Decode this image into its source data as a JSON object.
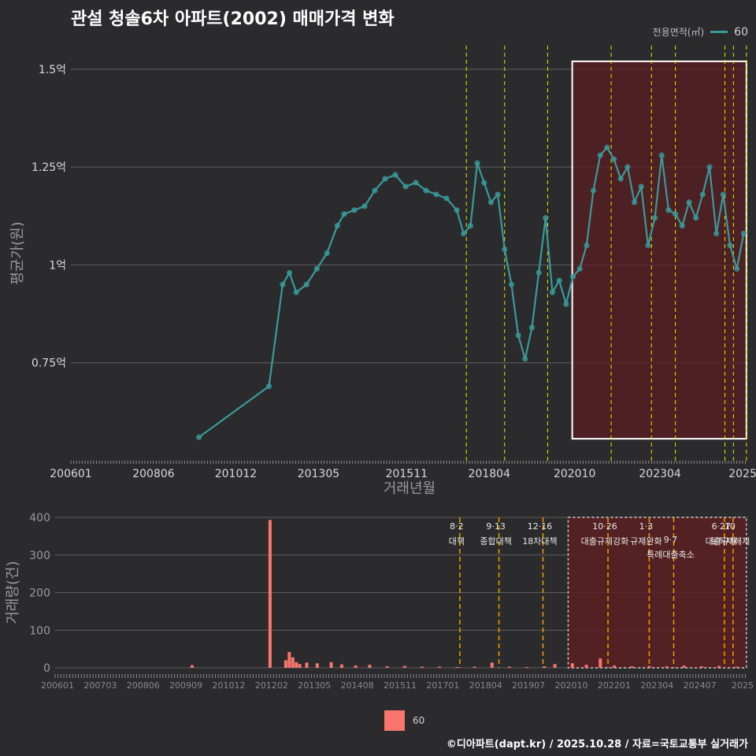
{
  "title": "관설 청솔6차 아파트(2002) 매매가격 변화",
  "legend": {
    "title": "전용면적(㎡)",
    "label": "60"
  },
  "colors": {
    "line": "#3a9a9a",
    "bar": "#f8766d",
    "highlight": "#5a1e22",
    "vline": "#e6e600",
    "vline2": "#f0a000"
  },
  "main_chart": {
    "type": "line",
    "ylabel": "평균가(원)",
    "xlabel": "거래년월",
    "yticks": [
      {
        "value": 1.5,
        "label": "1.5억"
      },
      {
        "value": 1.25,
        "label": "1.25억"
      },
      {
        "value": 1.0,
        "label": "1억"
      },
      {
        "value": 0.75,
        "label": "0.75억"
      }
    ],
    "ylim": [
      0.5,
      1.56
    ],
    "xlim": [
      2006.0,
      2025.83
    ],
    "xticks": [
      {
        "value": 2006.0,
        "label": "200601"
      },
      {
        "value": 2008.42,
        "label": "200806"
      },
      {
        "value": 2010.83,
        "label": "201012"
      },
      {
        "value": 2013.25,
        "label": "201305"
      },
      {
        "value": 2015.83,
        "label": "201511"
      },
      {
        "value": 2018.25,
        "label": "201804"
      },
      {
        "value": 2020.75,
        "label": "202010"
      },
      {
        "value": 2023.25,
        "label": "202304"
      },
      {
        "value": 2025.67,
        "label": "2025"
      }
    ],
    "series": [
      {
        "name": "60",
        "x": [
          2009.75,
          2011.8,
          2012.2,
          2012.4,
          2012.6,
          2012.9,
          2013.2,
          2013.5,
          2013.8,
          2014.0,
          2014.3,
          2014.6,
          2014.9,
          2015.2,
          2015.5,
          2015.8,
          2016.1,
          2016.4,
          2016.7,
          2017.0,
          2017.3,
          2017.5,
          2017.7,
          2017.9,
          2018.1,
          2018.3,
          2018.5,
          2018.7,
          2018.9,
          2019.1,
          2019.3,
          2019.5,
          2019.7,
          2019.9,
          2020.1,
          2020.3,
          2020.5,
          2020.7,
          2020.9,
          2021.1,
          2021.3,
          2021.5,
          2021.7,
          2021.9,
          2022.1,
          2022.3,
          2022.5,
          2022.7,
          2022.9,
          2023.1,
          2023.3,
          2023.5,
          2023.7,
          2023.9,
          2024.1,
          2024.3,
          2024.5,
          2024.7,
          2024.9,
          2025.1,
          2025.3,
          2025.5,
          2025.7
        ],
        "y": [
          0.56,
          0.69,
          0.95,
          0.98,
          0.93,
          0.95,
          0.99,
          1.03,
          1.1,
          1.13,
          1.14,
          1.15,
          1.19,
          1.22,
          1.23,
          1.2,
          1.21,
          1.19,
          1.18,
          1.17,
          1.14,
          1.08,
          1.1,
          1.26,
          1.21,
          1.16,
          1.18,
          1.04,
          0.95,
          0.82,
          0.76,
          0.84,
          0.98,
          1.12,
          0.93,
          0.96,
          0.9,
          0.97,
          0.99,
          1.05,
          1.19,
          1.28,
          1.3,
          1.27,
          1.22,
          1.25,
          1.16,
          1.2,
          1.05,
          1.12,
          1.28,
          1.14,
          1.13,
          1.1,
          1.16,
          1.12,
          1.18,
          1.25,
          1.08,
          1.18,
          1.05,
          0.99,
          1.08
        ]
      }
    ],
    "policy_lines_x": [
      2017.58,
      2018.7,
      2019.96,
      2021.82,
      2023.0,
      2023.7,
      2025.15,
      2025.4,
      2025.78
    ],
    "highlight_range": {
      "x": [
        2020.68,
        2025.78
      ],
      "y": [
        0.556,
        1.52
      ]
    }
  },
  "volume_chart": {
    "type": "bar",
    "ylabel": "거래량(건)",
    "yticks": [
      {
        "value": 400,
        "label": "400"
      },
      {
        "value": 300,
        "label": "300"
      },
      {
        "value": 200,
        "label": "200"
      },
      {
        "value": 100,
        "label": "100"
      },
      {
        "value": 0,
        "label": "0"
      }
    ],
    "ylim": [
      0,
      400
    ],
    "xlim": [
      2006.0,
      2025.83
    ],
    "xticks": [
      "200601",
      "200703",
      "200806",
      "200909",
      "201012",
      "201202",
      "201305",
      "201408",
      "201511",
      "201701",
      "201804",
      "201907",
      "202010",
      "202201",
      "202304",
      "202407",
      "2025"
    ],
    "bars": [
      {
        "x": 2009.92,
        "value": 7
      },
      {
        "x": 2012.15,
        "value": 393
      },
      {
        "x": 2012.6,
        "value": 20
      },
      {
        "x": 2012.7,
        "value": 42
      },
      {
        "x": 2012.8,
        "value": 28
      },
      {
        "x": 2012.9,
        "value": 15
      },
      {
        "x": 2013.0,
        "value": 10
      },
      {
        "x": 2013.2,
        "value": 14
      },
      {
        "x": 2013.5,
        "value": 12
      },
      {
        "x": 2013.9,
        "value": 15
      },
      {
        "x": 2014.2,
        "value": 9
      },
      {
        "x": 2014.6,
        "value": 6
      },
      {
        "x": 2015.0,
        "value": 8
      },
      {
        "x": 2015.5,
        "value": 4
      },
      {
        "x": 2016.0,
        "value": 5
      },
      {
        "x": 2016.5,
        "value": 3
      },
      {
        "x": 2017.0,
        "value": 3
      },
      {
        "x": 2017.5,
        "value": 2
      },
      {
        "x": 2018.0,
        "value": 3
      },
      {
        "x": 2018.5,
        "value": 14
      },
      {
        "x": 2019.0,
        "value": 3
      },
      {
        "x": 2019.5,
        "value": 2
      },
      {
        "x": 2020.0,
        "value": 4
      },
      {
        "x": 2020.3,
        "value": 10
      },
      {
        "x": 2020.8,
        "value": 12
      },
      {
        "x": 2021.2,
        "value": 8
      },
      {
        "x": 2021.6,
        "value": 25
      },
      {
        "x": 2022.0,
        "value": 6
      },
      {
        "x": 2022.5,
        "value": 4
      },
      {
        "x": 2023.0,
        "value": 5
      },
      {
        "x": 2023.5,
        "value": 4
      },
      {
        "x": 2024.0,
        "value": 6
      },
      {
        "x": 2024.5,
        "value": 4
      },
      {
        "x": 2025.0,
        "value": 5
      },
      {
        "x": 2025.5,
        "value": 3
      }
    ],
    "policies": [
      {
        "x": 2017.58,
        "date": "8·2",
        "label": "대책"
      },
      {
        "x": 2018.7,
        "date": "9·13",
        "label": "종합대책"
      },
      {
        "x": 2019.96,
        "date": "12·16",
        "label": "18차대책"
      },
      {
        "x": 2021.82,
        "date": "10·26",
        "label": "대출규제강화"
      },
      {
        "x": 2023.0,
        "date": "1·3",
        "label": "규제완화"
      },
      {
        "x": 2023.7,
        "date": "9·7",
        "label": "특례대출축소"
      },
      {
        "x": 2025.15,
        "date": "6·27",
        "label": "대출규제"
      },
      {
        "x": 2025.4,
        "date": "10",
        "label": "토허제해제"
      }
    ],
    "highlight_range": {
      "x": [
        2020.68,
        2025.78
      ]
    }
  },
  "bottom_legend": {
    "label": "60"
  },
  "credit": "©디아파트(dapt.kr) / 2025.10.28 / 자료=국토교통부 실거래가"
}
